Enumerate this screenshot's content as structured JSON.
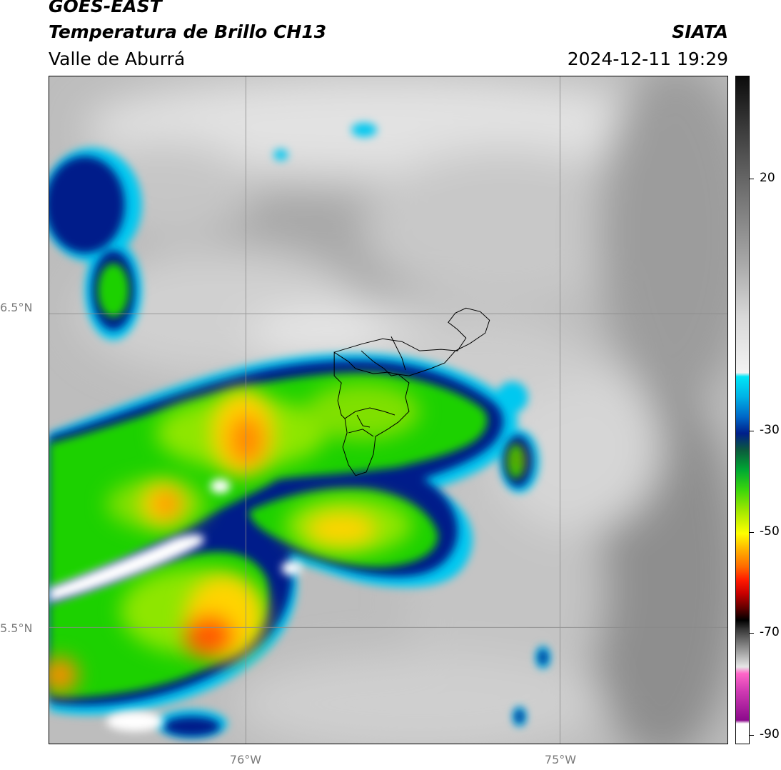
{
  "header": {
    "satellite": "GOES-EAST",
    "product": "Temperatura de Brillo CH13",
    "region": "Valle de Aburrá",
    "organization": "SIATA",
    "datetime": "2024-12-11 19:29"
  },
  "map": {
    "lat_labels": [
      "6.5°N",
      "5.5°N"
    ],
    "lon_labels": [
      "76°W",
      "75°W"
    ],
    "lat_values": [
      6.5,
      5.5
    ],
    "lon_values": [
      -76.0,
      -75.0
    ]
  },
  "colorbar": {
    "tick_labels": [
      "20",
      "-30",
      "-50",
      "-70",
      "-90"
    ],
    "tick_values": [
      20,
      -30,
      -50,
      -70,
      -90
    ],
    "colors": {
      "warm_top": "#0b0b0b",
      "grey_mid": "#a8a8a8",
      "cyan": "#00e6f7",
      "blue": "#001f8a",
      "green": "#00a833",
      "yellow": "#ffff00",
      "orange": "#ff6a00",
      "red": "#c80000",
      "black": "#000000",
      "magenta": "#d23cb4",
      "purple": "#8c0a8c"
    }
  }
}
